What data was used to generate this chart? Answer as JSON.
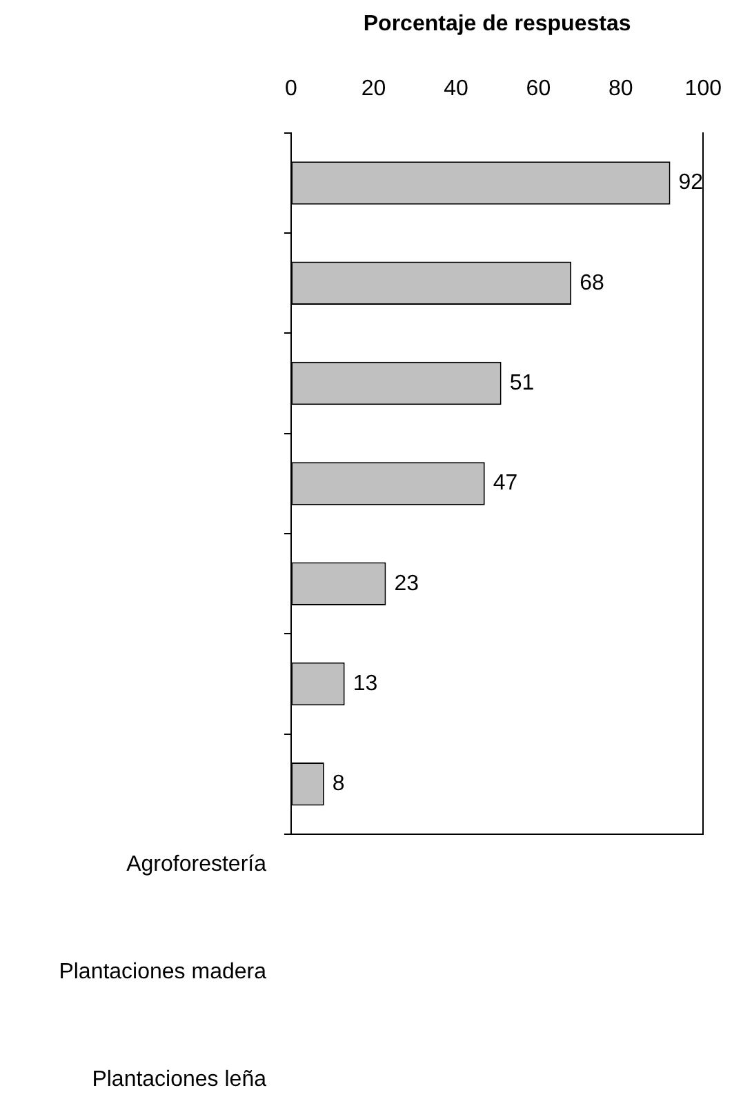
{
  "chart_data": {
    "type": "bar",
    "orientation": "horizontal",
    "xlabel": "Porcentaje de respuestas",
    "categories": [
      null,
      null,
      null,
      null,
      null,
      null,
      null
    ],
    "values": [
      92,
      68,
      51,
      47,
      23,
      13,
      8
    ],
    "color": "#c0c0c0",
    "xlim": [
      0,
      100
    ],
    "xticks": [
      0,
      20,
      40,
      60,
      80,
      100
    ],
    "data_labels": true,
    "grid": false,
    "legend": false,
    "annotations": [
      "Agroforestería",
      "Plantaciones madera",
      "Plantaciones leña"
    ]
  }
}
